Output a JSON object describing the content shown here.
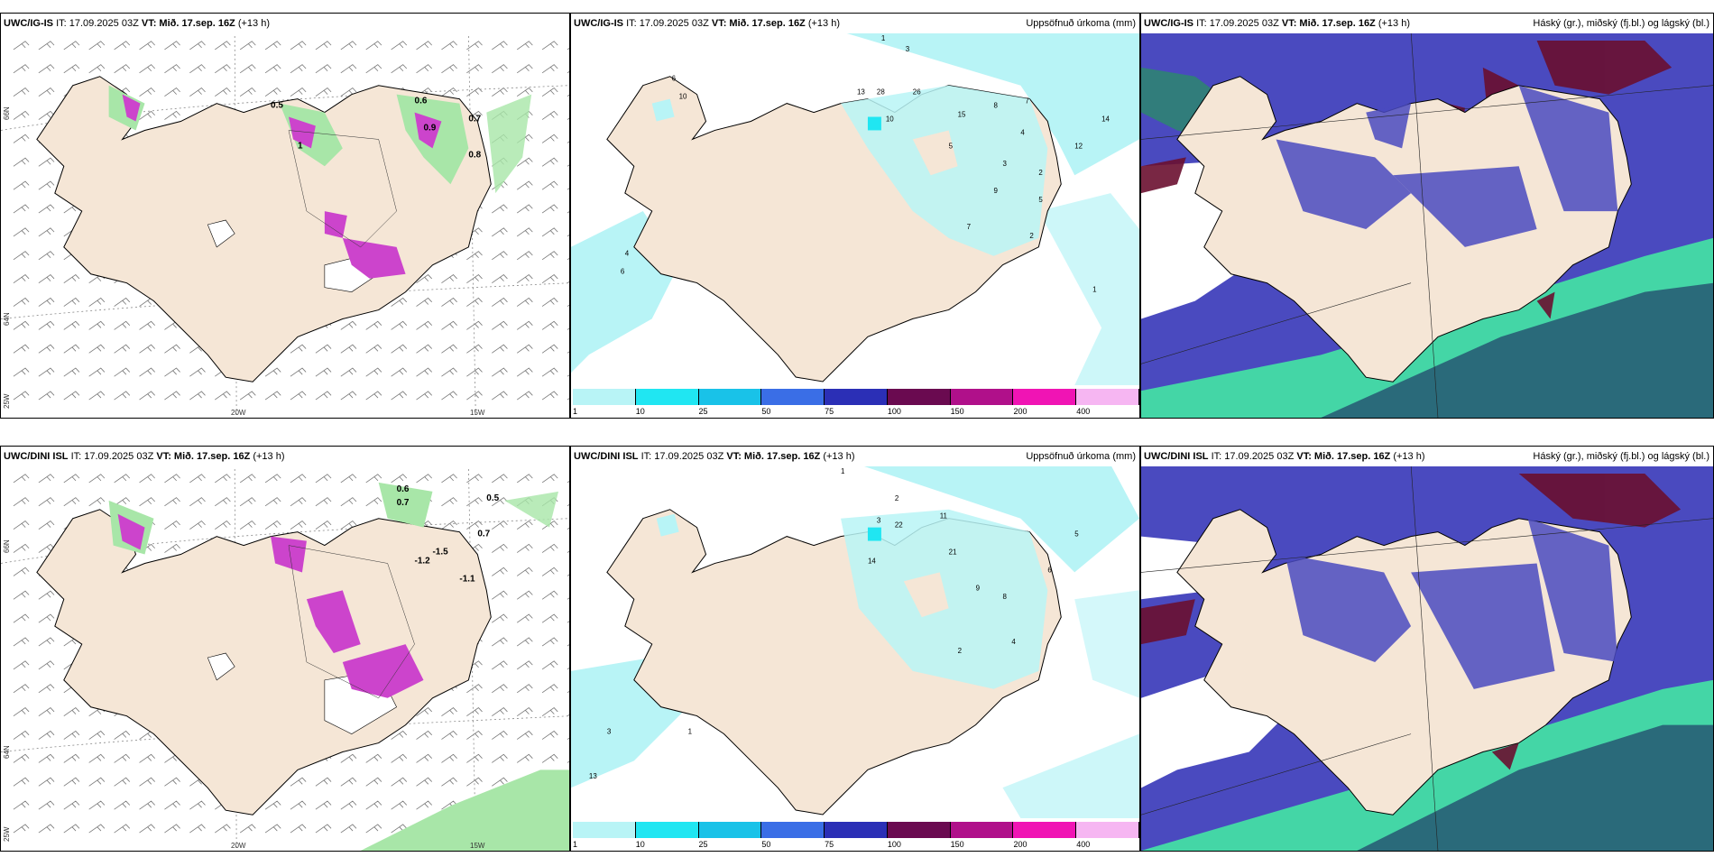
{
  "panels": [
    {
      "id": "p1",
      "model": "UWC/IG-IS",
      "it": "IT: 17.09.2025 03Z",
      "vt": "VT: Mið. 17.sep. 16Z",
      "lead": "(+13 h)",
      "right": "",
      "type": "wind"
    },
    {
      "id": "p2",
      "model": "UWC/IG-IS",
      "it": "IT: 17.09.2025 03Z",
      "vt": "VT: Mið. 17.sep. 16Z",
      "lead": "(+13 h)",
      "right": "Uppsöfnuð úrkoma (mm)",
      "type": "precip"
    },
    {
      "id": "p3",
      "model": "UWC/IG-IS",
      "it": "IT: 17.09.2025 03Z",
      "vt": "VT: Mið. 17.sep. 16Z",
      "lead": "(+13 h)",
      "right": "Háský (gr.), miðský (fj.bl.) og lágský (bl.)",
      "type": "cloud"
    },
    {
      "id": "p4",
      "model": "UWC/DINI ISL",
      "it": "IT: 17.09.2025 03Z",
      "vt": "VT: Mið. 17.sep. 16Z",
      "lead": "(+13 h)",
      "right": "",
      "type": "wind"
    },
    {
      "id": "p5",
      "model": "UWC/DINI ISL",
      "it": "IT: 17.09.2025 03Z",
      "vt": "VT: Mið. 17.sep. 16Z",
      "lead": "(+13 h)",
      "right": "Uppsöfnuð úrkoma (mm)",
      "type": "precip"
    },
    {
      "id": "p6",
      "model": "UWC/DINI ISL",
      "it": "IT: 17.09.2025 03Z",
      "vt": "VT: Mið. 17.sep. 16Z",
      "lead": "(+13 h)",
      "right": "Háský (gr.), miðský (fj.bl.) og lágský (bl.)",
      "type": "cloud"
    }
  ],
  "axis_labels": {
    "lat_66": "66N",
    "lat_64": "64N",
    "lon_20": "20W",
    "lon_15": "15W",
    "lon_25": "25W"
  },
  "colorbar": {
    "ticks": [
      "1",
      "10",
      "25",
      "50",
      "75",
      "100",
      "150",
      "200",
      "400"
    ],
    "colors": [
      "#b8f4f6",
      "#20e6f2",
      "#19c2e8",
      "#3a6ee6",
      "#2b2fb6",
      "#6a0a50",
      "#b0108a",
      "#f014b4",
      "#f6b6f2"
    ]
  },
  "precip_labels_top": [
    "1",
    "3",
    "6",
    "10",
    "13",
    "28",
    "26",
    "15",
    "8",
    "7",
    "10",
    "5",
    "4",
    "3",
    "2",
    "14",
    "12",
    "9",
    "7",
    "5",
    "1",
    "2",
    "4",
    "6"
  ],
  "precip_labels_bottom": [
    "1",
    "2",
    "3",
    "11",
    "22",
    "21",
    "14",
    "9",
    "8",
    "6",
    "5",
    "4",
    "2",
    "13",
    "3",
    "1"
  ],
  "wind_labels_top": [
    "0.5",
    "0.6",
    "0.7",
    "0.8",
    "0.9",
    "1"
  ],
  "wind_labels_bottom": [
    "0.6",
    "0.7",
    "0.5",
    "-1.2",
    "-1.1",
    "-1.5",
    "0.7"
  ],
  "colors": {
    "land": "#f5e6d6",
    "coast": "#000000",
    "wind_green": "#a8e6a8",
    "wind_purple": "#cc44cc",
    "cloud_high": "#6a0f30",
    "cloud_mid": "#4a4abf",
    "cloud_low": "#2a8a6a",
    "cloud_lowedge": "#44d6a6"
  }
}
